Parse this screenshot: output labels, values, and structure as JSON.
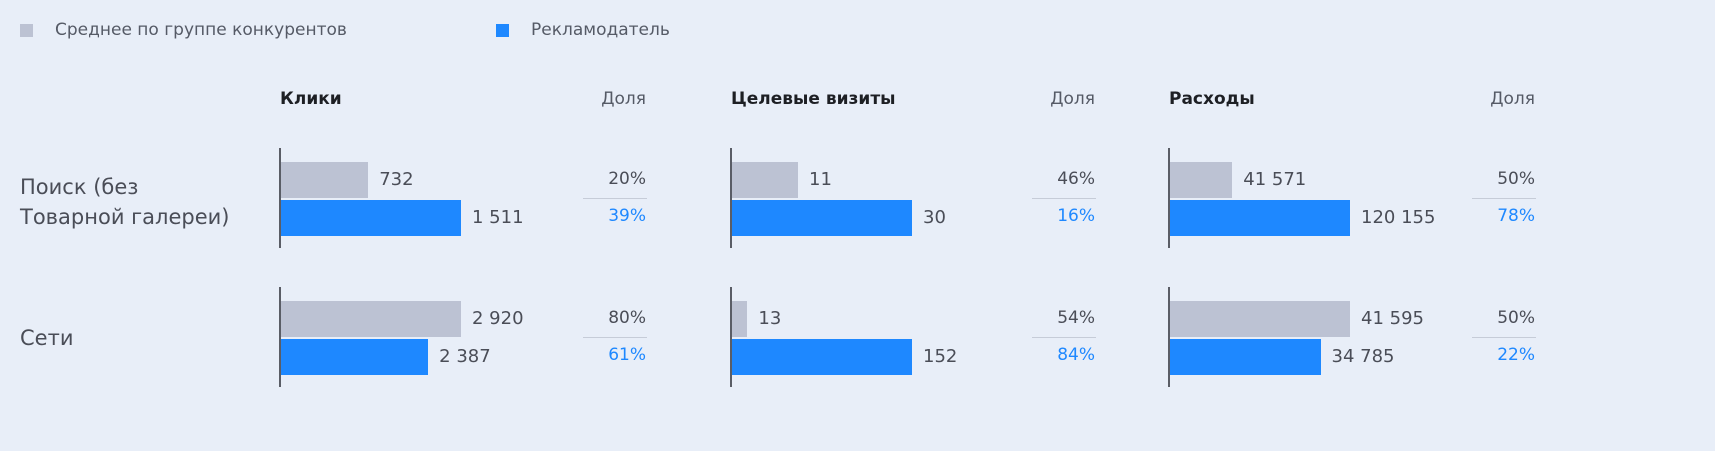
{
  "chart_data": {
    "type": "bar",
    "orientation": "horizontal",
    "legend": {
      "placement": "top-left",
      "items": [
        {
          "name": "Среднее по группе конкурентов",
          "color": "#bcc2d3"
        },
        {
          "name": "Рекламодатель",
          "color": "#1e88ff"
        }
      ]
    },
    "share_header": "Доля",
    "rows": [
      "Поиск (без Товарной галереи)",
      "Сети"
    ],
    "row_lines": [
      [
        "Поиск (без",
        "Товарной галереи)"
      ],
      [
        "Сети"
      ]
    ],
    "panels": [
      {
        "title": "Клики",
        "cells": [
          {
            "competitors": 732,
            "competitors_label": "732",
            "advertiser": 1511,
            "advertiser_label": "1 511",
            "competitors_share": "20%",
            "advertiser_share": "39%"
          },
          {
            "competitors": 2920,
            "competitors_label": "2 920",
            "advertiser": 2387,
            "advertiser_label": "2 387",
            "competitors_share": "80%",
            "advertiser_share": "61%"
          }
        ]
      },
      {
        "title": "Целевые визиты",
        "cells": [
          {
            "competitors": 11,
            "competitors_label": "11",
            "advertiser": 30,
            "advertiser_label": "30",
            "competitors_share": "46%",
            "advertiser_share": "16%"
          },
          {
            "competitors": 13,
            "competitors_label": "13",
            "advertiser": 152,
            "advertiser_label": "152",
            "competitors_share": "54%",
            "advertiser_share": "84%"
          }
        ]
      },
      {
        "title": "Расходы",
        "cells": [
          {
            "competitors": 41571,
            "competitors_label": "41 571",
            "advertiser": 120155,
            "advertiser_label": "120 155",
            "competitors_share": "50%",
            "advertiser_share": "78%"
          },
          {
            "competitors": 41595,
            "competitors_label": "41 595",
            "advertiser": 34785,
            "advertiser_label": "34 785",
            "competitors_share": "50%",
            "advertiser_share": "22%"
          }
        ]
      }
    ]
  },
  "colors": {
    "competitors": "#bcc2d3",
    "advertiser": "#1e88ff",
    "advertiser_share_text": "#1e88ff",
    "background": "#e8eef8"
  }
}
